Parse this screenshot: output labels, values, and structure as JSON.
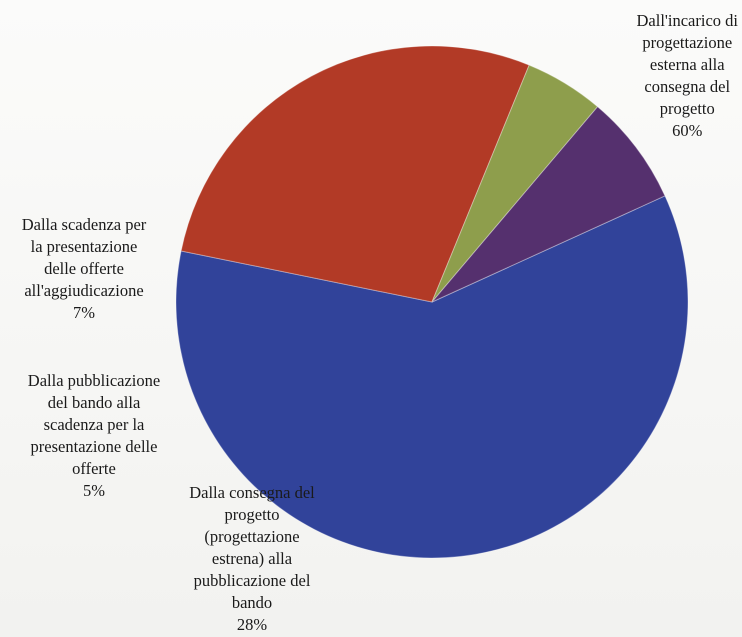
{
  "chart_data": {
    "type": "pie",
    "categories": [
      "Dall'incarico di progettazione esterna alla consegna del progetto",
      "Dalla consegna del progetto (progettazione estrena) alla pubblicazione del bando",
      "Dalla pubblicazione del bando alla scadenza per la presentazione delle offerte",
      "Dalla scadenza per la presentazione delle offerte all'aggiudicazione"
    ],
    "values": [
      60,
      28,
      5,
      7
    ],
    "labels": [
      {
        "text": "Dall'incarico di\nprogettazione\nesterna alla\nconsegna del\nprogetto",
        "pct": "60%"
      },
      {
        "text": "Dalla consegna del\nprogetto\n(progettazione\nestrena) alla\npubblicazione del\nbando",
        "pct": "28%"
      },
      {
        "text": "Dalla pubblicazione\ndel bando alla\nscadenza per la\npresentazione delle\nofferte",
        "pct": "5%"
      },
      {
        "text": "Dalla scadenza per\nla presentazione\ndelle offerte\nall'aggiudicazione",
        "pct": "7%"
      }
    ],
    "colors": [
      "#31439a",
      "#b23a26",
      "#8e9e4c",
      "#55306e"
    ],
    "start_angle_deg": -24.5,
    "direction": "clockwise",
    "legend": "none",
    "title": ""
  }
}
